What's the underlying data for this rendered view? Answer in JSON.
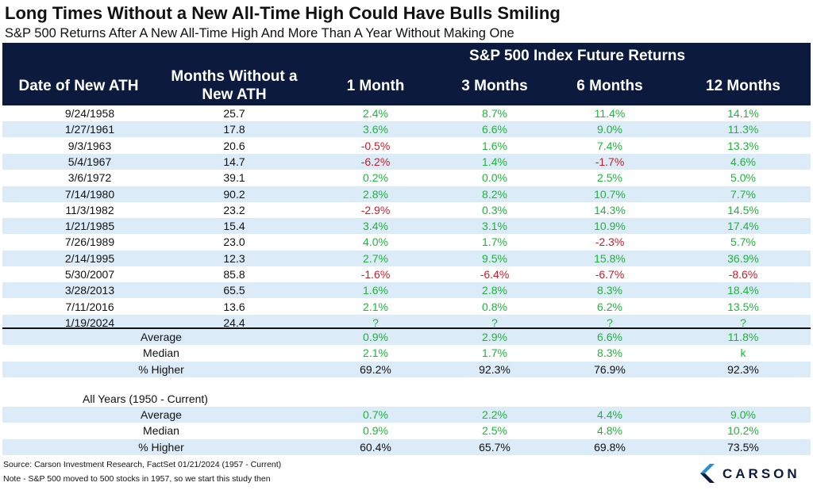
{
  "title": "Long Times Without a New All-Time High Could Have Bulls Smiling",
  "subtitle": "S&P 500 Returns After A New All-Time High And More Than A Year Without Making One",
  "header": {
    "group_label": "S&P 500 Index Future Returns",
    "col_date": "Date of New ATH",
    "col_months_line1": "Months Without a",
    "col_months_line2": "New ATH",
    "col_1m": "1 Month",
    "col_3m": "3 Months",
    "col_6m": "6 Months",
    "col_12m": "12 Months"
  },
  "rows": [
    {
      "date": "9/24/1958",
      "months": "25.7",
      "m1": "2.4%",
      "m3": "8.7%",
      "m6": "11.4%",
      "m12": "14.1%"
    },
    {
      "date": "1/27/1961",
      "months": "17.8",
      "m1": "3.6%",
      "m3": "6.6%",
      "m6": "9.0%",
      "m12": "11.3%"
    },
    {
      "date": "9/3/1963",
      "months": "20.6",
      "m1": "-0.5%",
      "m3": "1.6%",
      "m6": "7.4%",
      "m12": "13.3%"
    },
    {
      "date": "5/4/1967",
      "months": "14.7",
      "m1": "-6.2%",
      "m3": "1.4%",
      "m6": "-1.7%",
      "m12": "4.6%"
    },
    {
      "date": "3/6/1972",
      "months": "39.1",
      "m1": "0.2%",
      "m3": "0.0%",
      "m6": "2.5%",
      "m12": "5.0%"
    },
    {
      "date": "7/14/1980",
      "months": "90.2",
      "m1": "2.8%",
      "m3": "8.2%",
      "m6": "10.7%",
      "m12": "7.7%"
    },
    {
      "date": "11/3/1982",
      "months": "23.2",
      "m1": "-2.9%",
      "m3": "0.3%",
      "m6": "14.3%",
      "m12": "14.5%"
    },
    {
      "date": "1/21/1985",
      "months": "15.4",
      "m1": "3.4%",
      "m3": "3.1%",
      "m6": "10.9%",
      "m12": "17.4%"
    },
    {
      "date": "7/26/1989",
      "months": "23.0",
      "m1": "4.0%",
      "m3": "1.7%",
      "m6": "-2.3%",
      "m12": "5.7%"
    },
    {
      "date": "2/14/1995",
      "months": "12.3",
      "m1": "2.7%",
      "m3": "9.5%",
      "m6": "15.8%",
      "m12": "36.9%"
    },
    {
      "date": "5/30/2007",
      "months": "85.8",
      "m1": "-1.6%",
      "m3": "-6.4%",
      "m6": "-6.7%",
      "m12": "-8.6%"
    },
    {
      "date": "3/28/2013",
      "months": "65.5",
      "m1": "1.6%",
      "m3": "2.8%",
      "m6": "8.3%",
      "m12": "18.4%"
    },
    {
      "date": "7/11/2016",
      "months": "13.6",
      "m1": "2.1%",
      "m3": "0.8%",
      "m6": "6.2%",
      "m12": "13.5%"
    },
    {
      "date": "1/19/2024",
      "months": "24.4",
      "m1": "?",
      "m3": "?",
      "m6": "?",
      "m12": "?"
    }
  ],
  "summary": [
    {
      "label": "Average",
      "m1": "0.9%",
      "m3": "2.9%",
      "m6": "6.6%",
      "m12": "11.8%",
      "style": "pos"
    },
    {
      "label": "Median",
      "m1": "2.1%",
      "m3": "1.7%",
      "m6": "8.3%",
      "m12": "k",
      "style": "pos"
    },
    {
      "label": "% Higher",
      "m1": "69.2%",
      "m3": "92.3%",
      "m6": "76.9%",
      "m12": "92.3%",
      "style": "plain"
    }
  ],
  "all_years_label": "All Years (1950 - Current)",
  "all_years": [
    {
      "label": "Average",
      "m1": "0.7%",
      "m3": "2.2%",
      "m6": "4.4%",
      "m12": "9.0%",
      "style": "pos"
    },
    {
      "label": "Median",
      "m1": "0.9%",
      "m3": "2.5%",
      "m6": "4.8%",
      "m12": "10.2%",
      "style": "pos"
    },
    {
      "label": "% Higher",
      "m1": "60.4%",
      "m3": "65.7%",
      "m6": "69.8%",
      "m12": "73.5%",
      "style": "plain"
    }
  ],
  "notes": {
    "source": "Source: Carson Investment Research, FactSet 01/21/2024 (1957 - Current)",
    "note": "Note - S&P 500 moved to 500 stocks in 1957, so we start this study then"
  },
  "logo": {
    "text": "CARSON",
    "color": "#0c1a3d",
    "accent": "#2a8fd6"
  },
  "colors": {
    "header_bg": "#0c1a3d",
    "band": "#dcebf8",
    "positive": "#1eb53a",
    "negative": "#c0202a"
  }
}
